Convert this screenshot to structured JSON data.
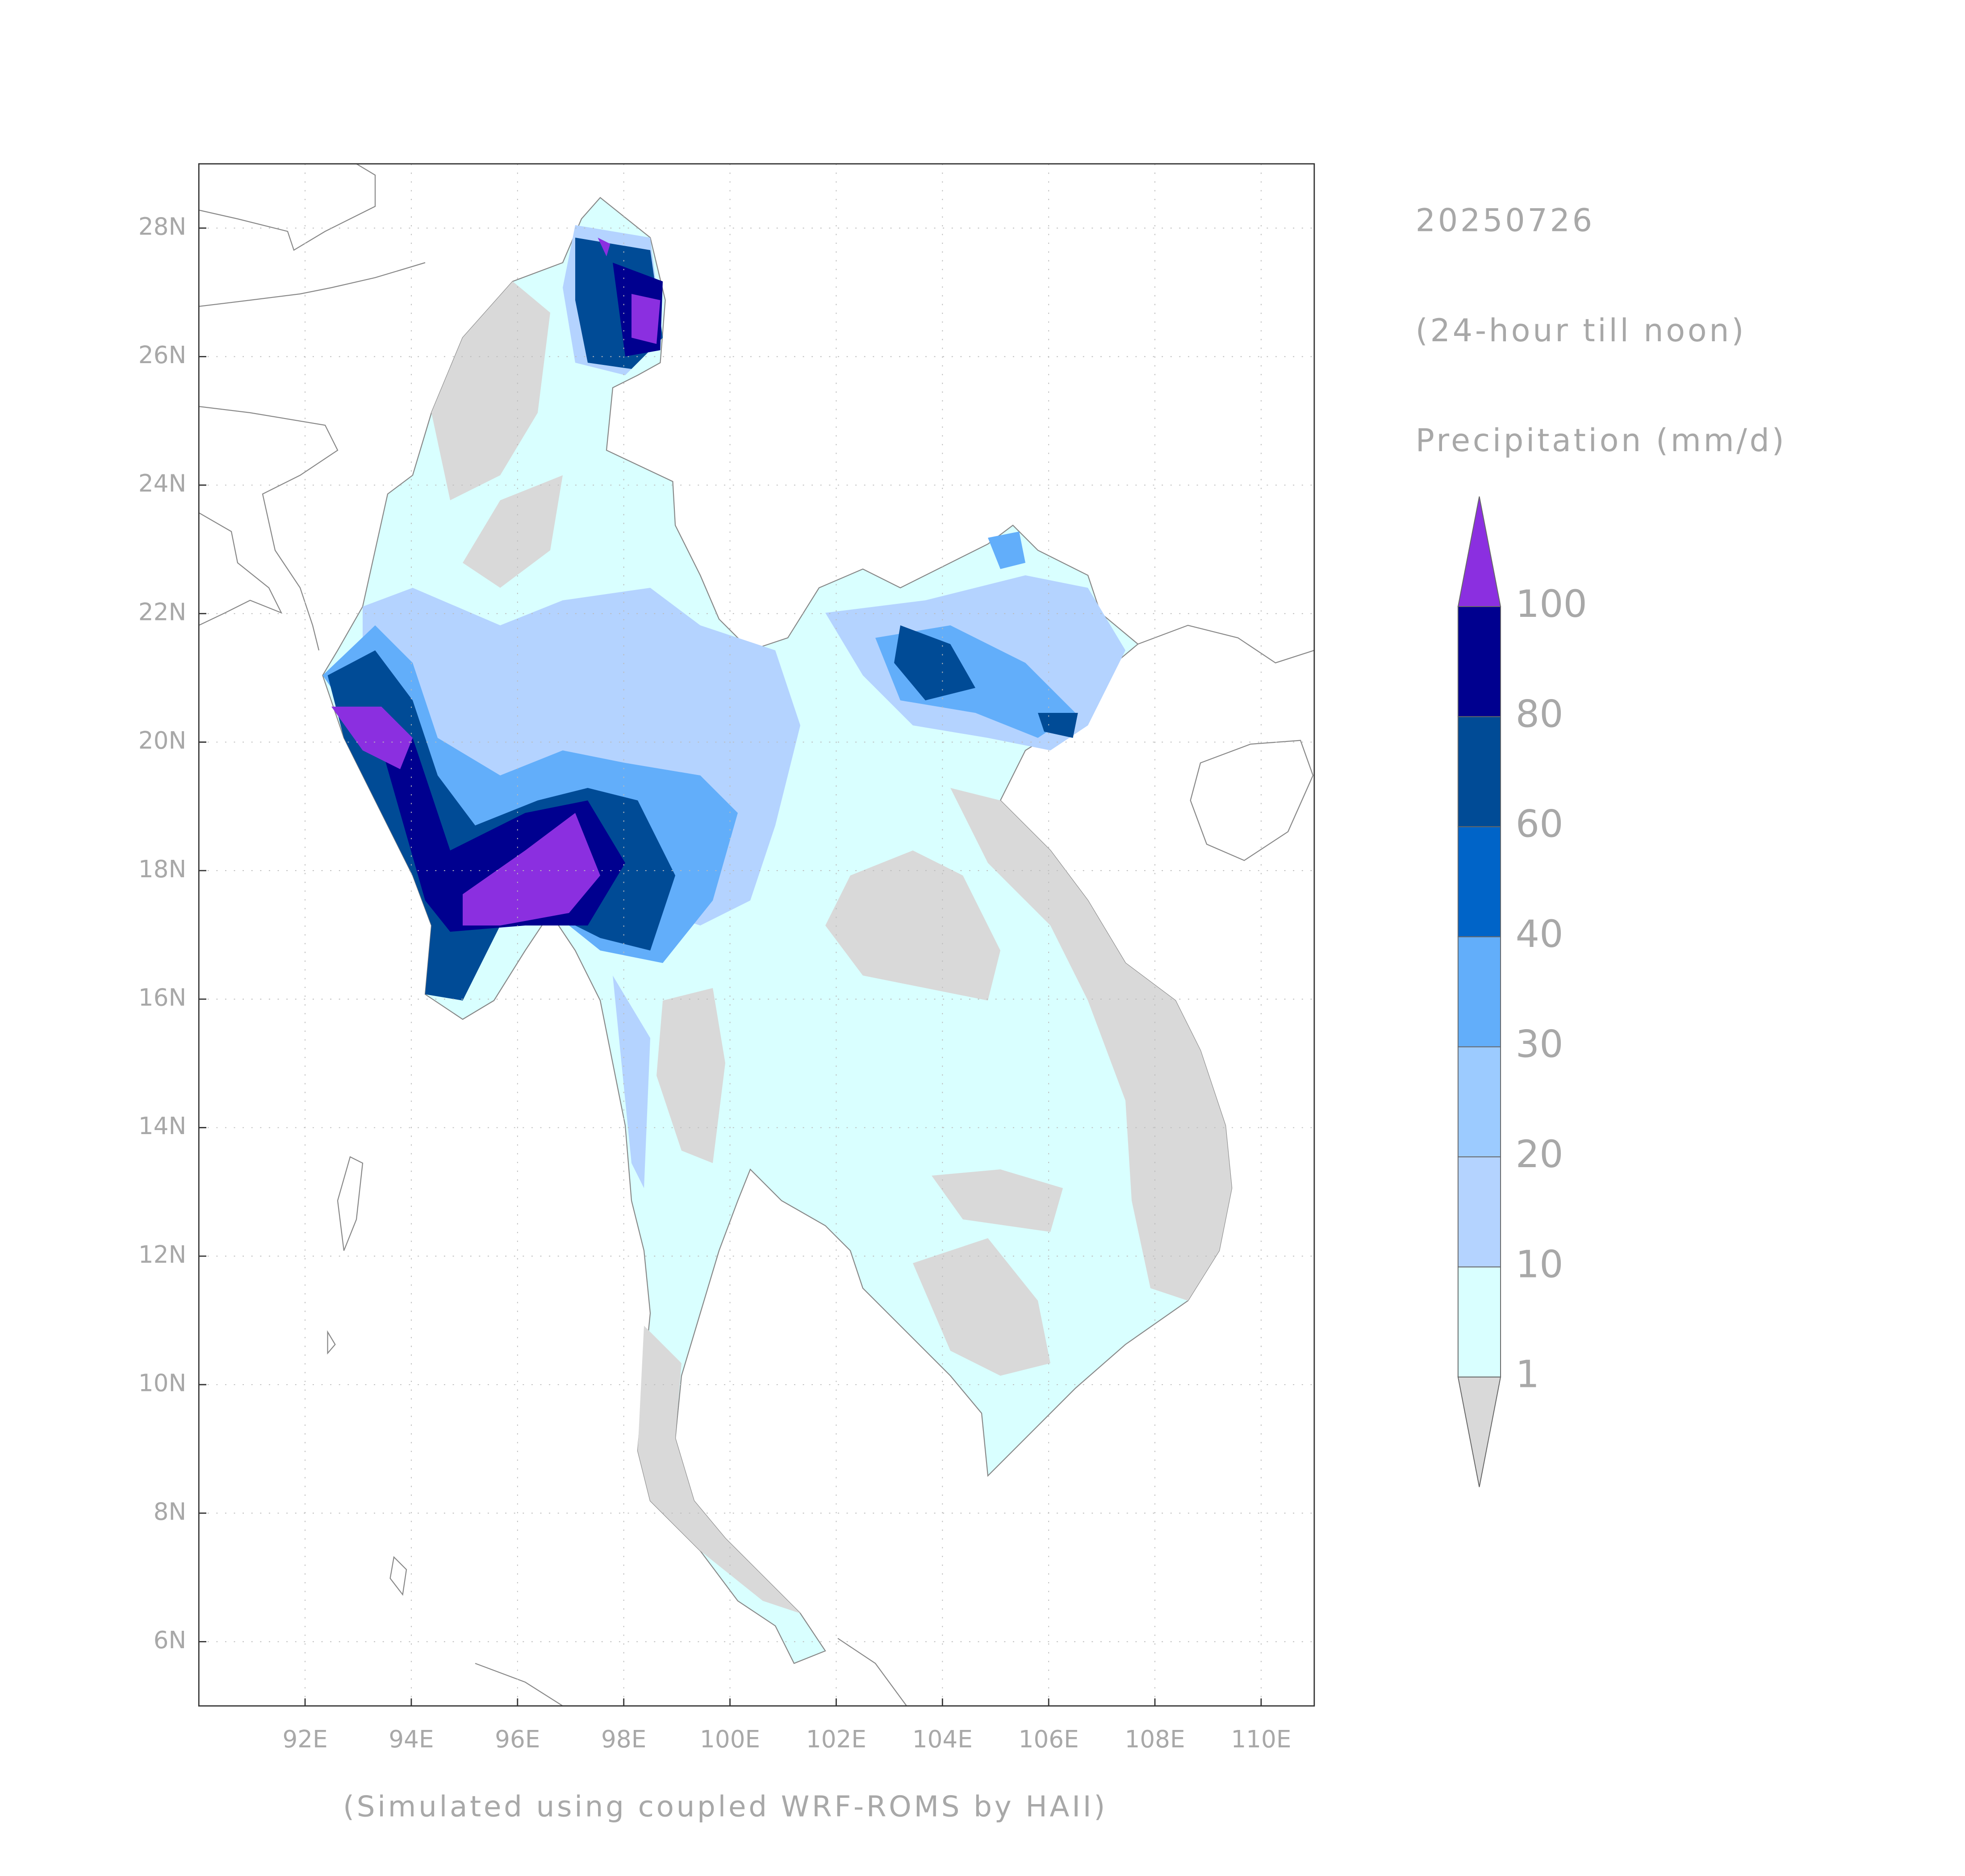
{
  "header": {
    "date": "20250726",
    "period": "(24-hour till noon)",
    "variable": "Precipitation (mm/d)"
  },
  "map": {
    "xlim": [
      90,
      111
    ],
    "ylim": [
      5,
      29
    ],
    "xticks": [
      {
        "value": 92,
        "label": "92E"
      },
      {
        "value": 94,
        "label": "94E"
      },
      {
        "value": 96,
        "label": "96E"
      },
      {
        "value": 98,
        "label": "98E"
      },
      {
        "value": 100,
        "label": "100E"
      },
      {
        "value": 102,
        "label": "102E"
      },
      {
        "value": 104,
        "label": "104E"
      },
      {
        "value": 106,
        "label": "106E"
      },
      {
        "value": 108,
        "label": "108E"
      },
      {
        "value": 110,
        "label": "110E"
      }
    ],
    "yticks": [
      {
        "value": 6,
        "label": "6N"
      },
      {
        "value": 8,
        "label": "8N"
      },
      {
        "value": 10,
        "label": "10N"
      },
      {
        "value": 12,
        "label": "12N"
      },
      {
        "value": 14,
        "label": "14N"
      },
      {
        "value": 16,
        "label": "16N"
      },
      {
        "value": 18,
        "label": "18N"
      },
      {
        "value": 20,
        "label": "20N"
      },
      {
        "value": 22,
        "label": "22N"
      },
      {
        "value": 24,
        "label": "24N"
      },
      {
        "value": 26,
        "label": "26N"
      },
      {
        "value": 28,
        "label": "28N"
      }
    ],
    "grid": true
  },
  "colorbar": {
    "levels": [
      1,
      10,
      20,
      30,
      40,
      60,
      80,
      100
    ],
    "colors": [
      "#d9d9d9",
      "#d9ffff",
      "#b4d3ff",
      "#9ccbff",
      "#62aefa",
      "#0064c8",
      "#004b96",
      "#00008f",
      "#8b2fe0"
    ]
  },
  "footer": "(Simulated using coupled WRF-ROMS by HAII)"
}
